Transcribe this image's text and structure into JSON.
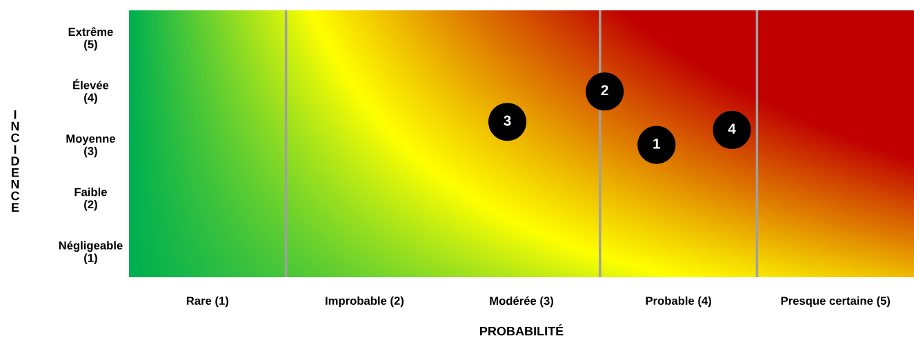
{
  "chart_data": {
    "type": "scatter",
    "xlabel": "PROBABILITÉ",
    "ylabel": "INCIDENCE",
    "xlim": [
      0.5,
      5.5
    ],
    "ylim": [
      0.5,
      5.5
    ],
    "xticks": [
      {
        "value": 1,
        "label": "Rare (1)"
      },
      {
        "value": 2,
        "label": "Improbable (2)"
      },
      {
        "value": 3,
        "label": "Modérée (3)"
      },
      {
        "value": 4,
        "label": "Probable (4)"
      },
      {
        "value": 5,
        "label": "Presque certaine (5)"
      }
    ],
    "yticks": [
      {
        "value": 1,
        "label": "Négligeable\n(1)"
      },
      {
        "value": 2,
        "label": "Faible\n(2)"
      },
      {
        "value": 3,
        "label": "Moyenne\n(3)"
      },
      {
        "value": 4,
        "label": "Élevée\n(4)"
      },
      {
        "value": 5,
        "label": "Extrême\n(5)"
      }
    ],
    "x": [
      3.86,
      3.53,
      2.91,
      4.34
    ],
    "values": [
      2.98,
      3.98,
      3.41,
      3.26
    ],
    "annotations": [
      {
        "text": "1",
        "x": 3.86,
        "y": 2.98
      },
      {
        "text": "2",
        "x": 3.53,
        "y": 3.98
      },
      {
        "text": "3",
        "x": 2.91,
        "y": 3.41
      },
      {
        "text": "4",
        "x": 4.34,
        "y": 3.26
      }
    ],
    "color": "#000000",
    "marker": "circle",
    "ref_lines": [
      {
        "axis": "x",
        "value": 1.5,
        "color": "#a0a0a0"
      },
      {
        "axis": "x",
        "value": 3.5,
        "color": "#a0a0a0"
      },
      {
        "axis": "x",
        "value": 4.5,
        "color": "#a0a0a0"
      }
    ],
    "grid": false
  }
}
